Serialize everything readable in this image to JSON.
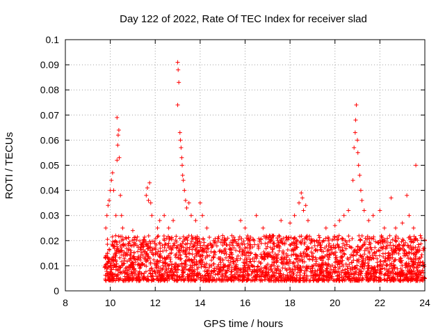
{
  "chart_data": {
    "type": "scatter",
    "title": "Day 122 of 2022, Rate Of TEC Index for receiver slad",
    "xlabel": "GPS time / hours",
    "ylabel": "ROTI / TECUs",
    "xlim": [
      8,
      24
    ],
    "ylim": [
      0,
      0.1
    ],
    "x_ticks": [
      "8",
      "10",
      "12",
      "14",
      "16",
      "18",
      "20",
      "22",
      "24"
    ],
    "y_ticks": [
      "0",
      "0.01",
      "0.02",
      "0.03",
      "0.04",
      "0.05",
      "0.06",
      "0.07",
      "0.08",
      "0.09",
      "0.1"
    ],
    "grid": true,
    "marker": "plus",
    "color": "#ff0000",
    "series": [
      {
        "values_note_free": true,
        "points": [
          [
            9.8,
            0.025
          ],
          [
            9.85,
            0.03
          ],
          [
            9.9,
            0.034
          ],
          [
            9.95,
            0.036
          ],
          [
            10.0,
            0.04
          ],
          [
            10.05,
            0.044
          ],
          [
            10.1,
            0.047
          ],
          [
            10.15,
            0.04
          ],
          [
            10.25,
            0.03
          ],
          [
            10.3,
            0.052
          ],
          [
            10.33,
            0.058
          ],
          [
            10.35,
            0.062
          ],
          [
            10.38,
            0.064
          ],
          [
            10.3,
            0.069
          ],
          [
            10.4,
            0.053
          ],
          [
            10.45,
            0.038
          ],
          [
            10.5,
            0.03
          ],
          [
            10.55,
            0.025
          ],
          [
            10.6,
            0.018
          ],
          [
            11.0,
            0.024
          ],
          [
            11.5,
            0.02
          ],
          [
            11.6,
            0.038
          ],
          [
            11.65,
            0.041
          ],
          [
            11.7,
            0.036
          ],
          [
            11.75,
            0.043
          ],
          [
            11.8,
            0.035
          ],
          [
            11.85,
            0.03
          ],
          [
            12.1,
            0.025
          ],
          [
            12.2,
            0.028
          ],
          [
            12.4,
            0.03
          ],
          [
            12.6,
            0.025
          ],
          [
            12.8,
            0.028
          ],
          [
            13.0,
            0.091
          ],
          [
            13.02,
            0.088
          ],
          [
            13.05,
            0.083
          ],
          [
            13.0,
            0.074
          ],
          [
            13.1,
            0.063
          ],
          [
            13.12,
            0.06
          ],
          [
            13.15,
            0.057
          ],
          [
            13.18,
            0.053
          ],
          [
            13.2,
            0.05
          ],
          [
            13.22,
            0.046
          ],
          [
            13.25,
            0.044
          ],
          [
            13.3,
            0.04
          ],
          [
            13.35,
            0.036
          ],
          [
            13.4,
            0.033
          ],
          [
            13.5,
            0.035
          ],
          [
            13.6,
            0.03
          ],
          [
            13.8,
            0.028
          ],
          [
            14.0,
            0.035
          ],
          [
            14.1,
            0.03
          ],
          [
            14.3,
            0.025
          ],
          [
            14.6,
            0.02
          ],
          [
            15.0,
            0.022
          ],
          [
            15.5,
            0.02
          ],
          [
            15.8,
            0.028
          ],
          [
            16.0,
            0.025
          ],
          [
            16.2,
            0.018
          ],
          [
            16.5,
            0.03
          ],
          [
            16.8,
            0.025
          ],
          [
            17.2,
            0.022
          ],
          [
            17.6,
            0.028
          ],
          [
            18.0,
            0.027
          ],
          [
            18.2,
            0.03
          ],
          [
            18.4,
            0.035
          ],
          [
            18.5,
            0.039
          ],
          [
            18.55,
            0.037
          ],
          [
            18.6,
            0.032
          ],
          [
            18.7,
            0.034
          ],
          [
            18.8,
            0.028
          ],
          [
            19.2,
            0.02
          ],
          [
            19.6,
            0.025
          ],
          [
            20.0,
            0.026
          ],
          [
            20.2,
            0.028
          ],
          [
            20.4,
            0.03
          ],
          [
            20.6,
            0.032
          ],
          [
            20.8,
            0.044
          ],
          [
            20.85,
            0.057
          ],
          [
            20.9,
            0.063
          ],
          [
            20.92,
            0.068
          ],
          [
            20.95,
            0.074
          ],
          [
            21.0,
            0.06
          ],
          [
            21.02,
            0.055
          ],
          [
            21.05,
            0.05
          ],
          [
            21.1,
            0.046
          ],
          [
            21.15,
            0.04
          ],
          [
            21.2,
            0.036
          ],
          [
            21.3,
            0.032
          ],
          [
            21.5,
            0.028
          ],
          [
            21.7,
            0.03
          ],
          [
            22.0,
            0.032
          ],
          [
            22.2,
            0.025
          ],
          [
            22.5,
            0.037
          ],
          [
            22.7,
            0.025
          ],
          [
            23.0,
            0.027
          ],
          [
            23.2,
            0.038
          ],
          [
            23.3,
            0.03
          ],
          [
            23.5,
            0.025
          ],
          [
            23.6,
            0.05
          ],
          [
            23.8,
            0.022
          ],
          [
            24.0,
            0.02
          ]
        ]
      }
    ]
  }
}
